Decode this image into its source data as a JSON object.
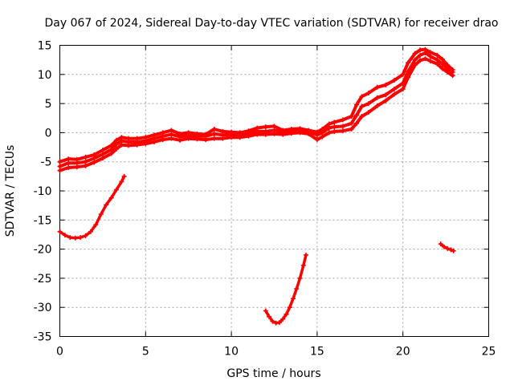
{
  "chart_data": {
    "type": "scatter",
    "title": "Day 067 of 2024, Sidereal Day-to-day VTEC variation (SDTVAR) for receiver drao",
    "xlabel": "GPS time / hours",
    "ylabel": "SDTVAR / TECUs",
    "xlim": [
      0,
      25
    ],
    "ylim": [
      -35,
      15
    ],
    "xticks": [
      0,
      5,
      10,
      15,
      20,
      25
    ],
    "yticks": [
      -35,
      -30,
      -25,
      -20,
      -15,
      -10,
      -5,
      0,
      5,
      10,
      15
    ],
    "grid": true,
    "colors": {
      "series": "#ff0000",
      "grid": "#a0a0a0",
      "axes": "#000000"
    },
    "series": [
      {
        "name": "main-band",
        "points": [
          [
            0,
            -5.8
          ],
          [
            0.5,
            -5.2
          ],
          [
            1,
            -5.2
          ],
          [
            1.5,
            -5.0
          ],
          [
            2,
            -4.4
          ],
          [
            2.5,
            -3.7
          ],
          [
            3,
            -2.9
          ],
          [
            3.3,
            -2.0
          ],
          [
            3.6,
            -1.4
          ],
          [
            4,
            -1.6
          ],
          [
            4.5,
            -1.6
          ],
          [
            5,
            -1.4
          ],
          [
            5.5,
            -1.0
          ],
          [
            6,
            -0.6
          ],
          [
            6.5,
            -0.3
          ],
          [
            7,
            -0.7
          ],
          [
            7.5,
            -0.5
          ],
          [
            8,
            -0.6
          ],
          [
            8.5,
            -0.6
          ],
          [
            9,
            -0.2
          ],
          [
            9.5,
            -0.4
          ],
          [
            10,
            -0.3
          ],
          [
            10.5,
            -0.4
          ],
          [
            11,
            -0.1
          ],
          [
            11.5,
            0.2
          ],
          [
            12,
            0.2
          ],
          [
            12.5,
            0.4
          ],
          [
            13,
            0.1
          ],
          [
            13.5,
            0.3
          ],
          [
            14,
            0.4
          ],
          [
            14.5,
            0.2
          ],
          [
            15,
            -0.4
          ],
          [
            15.3,
            0.0
          ],
          [
            15.7,
            0.8
          ],
          [
            16,
            1.0
          ],
          [
            16.5,
            1.1
          ],
          [
            17,
            1.6
          ],
          [
            17.3,
            3.0
          ],
          [
            17.6,
            4.5
          ],
          [
            18,
            5.0
          ],
          [
            18.5,
            6.0
          ],
          [
            19,
            6.5
          ],
          [
            19.5,
            7.5
          ],
          [
            20,
            8.5
          ],
          [
            20.3,
            10.5
          ],
          [
            20.7,
            12.5
          ],
          [
            21,
            13.3
          ],
          [
            21.3,
            13.7
          ],
          [
            21.6,
            13.1
          ],
          [
            22,
            12.5
          ],
          [
            22.3,
            11.8
          ],
          [
            22.6,
            11.0
          ],
          [
            22.9,
            10.4
          ]
        ]
      },
      {
        "name": "main-band-upper",
        "points": [
          [
            0,
            -5.0
          ],
          [
            0.5,
            -4.5
          ],
          [
            1,
            -4.6
          ],
          [
            1.5,
            -4.2
          ],
          [
            2,
            -3.8
          ],
          [
            2.5,
            -3.0
          ],
          [
            3,
            -2.2
          ],
          [
            3.3,
            -1.3
          ],
          [
            3.6,
            -0.8
          ],
          [
            4,
            -1.0
          ],
          [
            4.5,
            -1.0
          ],
          [
            5,
            -0.8
          ],
          [
            5.5,
            -0.4
          ],
          [
            6,
            0.0
          ],
          [
            6.5,
            0.4
          ],
          [
            7,
            -0.2
          ],
          [
            7.5,
            0.0
          ],
          [
            8,
            -0.2
          ],
          [
            8.5,
            -0.3
          ],
          [
            9,
            0.6
          ],
          [
            9.5,
            0.2
          ],
          [
            10,
            0.1
          ],
          [
            10.5,
            0.0
          ],
          [
            11,
            0.3
          ],
          [
            11.5,
            0.8
          ],
          [
            12,
            1.0
          ],
          [
            12.5,
            1.1
          ],
          [
            13,
            0.4
          ],
          [
            13.5,
            0.6
          ],
          [
            14,
            0.7
          ],
          [
            14.5,
            0.4
          ],
          [
            15,
            0.1
          ],
          [
            15.3,
            0.6
          ],
          [
            15.7,
            1.5
          ],
          [
            16,
            1.8
          ],
          [
            16.5,
            2.2
          ],
          [
            17,
            2.8
          ],
          [
            17.3,
            4.8
          ],
          [
            17.6,
            6.2
          ],
          [
            18,
            6.8
          ],
          [
            18.5,
            7.8
          ],
          [
            19,
            8.2
          ],
          [
            19.5,
            9.0
          ],
          [
            20,
            10.0
          ],
          [
            20.3,
            12.0
          ],
          [
            20.7,
            13.6
          ],
          [
            21,
            14.2
          ],
          [
            21.3,
            14.3
          ],
          [
            21.6,
            13.8
          ],
          [
            22,
            13.3
          ],
          [
            22.3,
            12.6
          ],
          [
            22.6,
            11.6
          ],
          [
            22.9,
            10.8
          ]
        ]
      },
      {
        "name": "main-band-lower",
        "points": [
          [
            0,
            -6.5
          ],
          [
            0.5,
            -6.0
          ],
          [
            1,
            -5.9
          ],
          [
            1.5,
            -5.7
          ],
          [
            2,
            -5.1
          ],
          [
            2.5,
            -4.4
          ],
          [
            3,
            -3.6
          ],
          [
            3.3,
            -2.8
          ],
          [
            3.6,
            -2.1
          ],
          [
            4,
            -2.2
          ],
          [
            4.5,
            -2.1
          ],
          [
            5,
            -1.9
          ],
          [
            5.5,
            -1.6
          ],
          [
            6,
            -1.2
          ],
          [
            6.5,
            -1.0
          ],
          [
            7,
            -1.3
          ],
          [
            7.5,
            -1.0
          ],
          [
            8,
            -1.1
          ],
          [
            8.5,
            -1.2
          ],
          [
            9,
            -1.0
          ],
          [
            9.5,
            -1.0
          ],
          [
            10,
            -0.8
          ],
          [
            10.5,
            -0.8
          ],
          [
            11,
            -0.6
          ],
          [
            11.5,
            -0.3
          ],
          [
            12,
            -0.3
          ],
          [
            12.5,
            -0.2
          ],
          [
            13,
            -0.3
          ],
          [
            13.5,
            -0.1
          ],
          [
            14,
            0.0
          ],
          [
            14.5,
            -0.2
          ],
          [
            15,
            -1.2
          ],
          [
            15.3,
            -0.7
          ],
          [
            15.7,
            0.0
          ],
          [
            16,
            0.2
          ],
          [
            16.5,
            0.3
          ],
          [
            17,
            0.6
          ],
          [
            17.3,
            1.6
          ],
          [
            17.6,
            2.8
          ],
          [
            18,
            3.5
          ],
          [
            18.5,
            4.6
          ],
          [
            19,
            5.5
          ],
          [
            19.5,
            6.6
          ],
          [
            20,
            7.5
          ],
          [
            20.3,
            9.5
          ],
          [
            20.7,
            11.6
          ],
          [
            21,
            12.4
          ],
          [
            21.3,
            12.7
          ],
          [
            21.6,
            12.3
          ],
          [
            22,
            11.8
          ],
          [
            22.3,
            11.0
          ],
          [
            22.6,
            10.4
          ],
          [
            22.9,
            9.8
          ]
        ]
      },
      {
        "name": "arc-early",
        "points": [
          [
            0,
            -17.0
          ],
          [
            0.3,
            -17.6
          ],
          [
            0.6,
            -18.0
          ],
          [
            0.9,
            -18.1
          ],
          [
            1.2,
            -18.0
          ],
          [
            1.5,
            -17.7
          ],
          [
            1.8,
            -17.0
          ],
          [
            2.1,
            -15.8
          ],
          [
            2.4,
            -14.0
          ],
          [
            2.7,
            -12.4
          ],
          [
            3.0,
            -11.2
          ],
          [
            3.3,
            -9.8
          ],
          [
            3.6,
            -8.4
          ],
          [
            3.75,
            -7.5
          ]
        ]
      },
      {
        "name": "arc-midday",
        "points": [
          [
            12.0,
            -30.6
          ],
          [
            12.2,
            -31.6
          ],
          [
            12.4,
            -32.4
          ],
          [
            12.6,
            -32.7
          ],
          [
            12.8,
            -32.6
          ],
          [
            13.0,
            -32.0
          ],
          [
            13.2,
            -31.2
          ],
          [
            13.4,
            -30.0
          ],
          [
            13.6,
            -28.5
          ],
          [
            13.8,
            -26.8
          ],
          [
            14.0,
            -25.0
          ],
          [
            14.2,
            -22.8
          ],
          [
            14.35,
            -21.0
          ]
        ]
      },
      {
        "name": "arc-late",
        "points": [
          [
            22.2,
            -19.1
          ],
          [
            22.4,
            -19.6
          ],
          [
            22.6,
            -19.9
          ],
          [
            22.8,
            -20.1
          ],
          [
            22.95,
            -20.3
          ]
        ]
      }
    ]
  }
}
